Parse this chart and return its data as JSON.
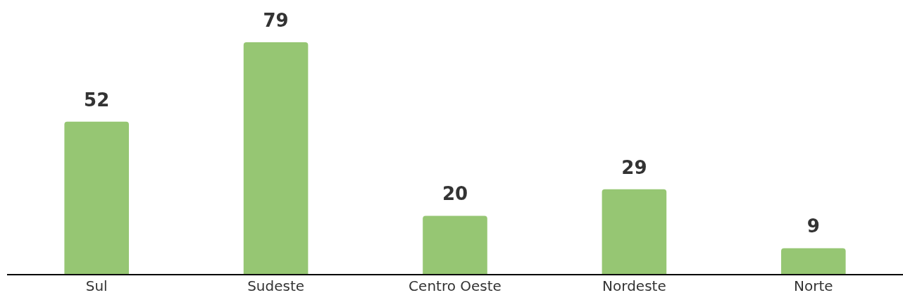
{
  "chart_data": {
    "type": "bar",
    "categories": [
      "Sul",
      "Sudeste",
      "Centro Oeste",
      "Nordeste",
      "Norte"
    ],
    "values": [
      52,
      79,
      20,
      29,
      9
    ],
    "color": "#96c673",
    "data_labels": true,
    "grid": false,
    "legend": false
  }
}
